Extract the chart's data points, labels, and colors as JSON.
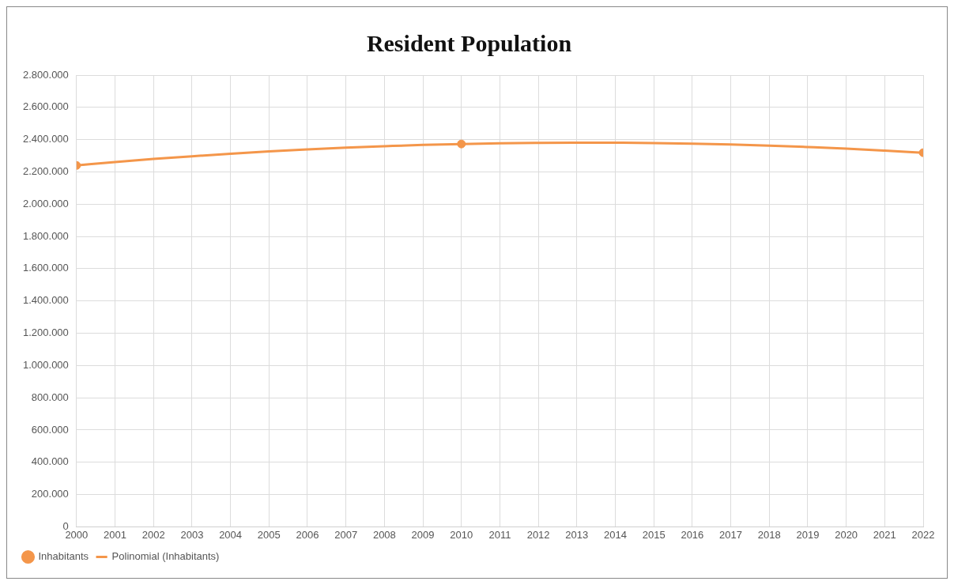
{
  "chart_data": {
    "type": "scatter",
    "title": "Resident Population",
    "xlim": [
      2000,
      2022
    ],
    "xticks": [
      2000,
      2001,
      2002,
      2003,
      2004,
      2005,
      2006,
      2007,
      2008,
      2009,
      2010,
      2011,
      2012,
      2013,
      2014,
      2015,
      2016,
      2017,
      2018,
      2019,
      2020,
      2021,
      2022
    ],
    "ylim": [
      0,
      2800000
    ],
    "yticks": [
      {
        "value": 0,
        "label": "0"
      },
      {
        "value": 200000,
        "label": "200.000"
      },
      {
        "value": 400000,
        "label": "400.000"
      },
      {
        "value": 600000,
        "label": "600.000"
      },
      {
        "value": 800000,
        "label": "800.000"
      },
      {
        "value": 1000000,
        "label": "1.000.000"
      },
      {
        "value": 1200000,
        "label": "1.200.000"
      },
      {
        "value": 1400000,
        "label": "1.400.000"
      },
      {
        "value": 1600000,
        "label": "1.600.000"
      },
      {
        "value": 1800000,
        "label": "1.800.000"
      },
      {
        "value": 2000000,
        "label": "2.000.000"
      },
      {
        "value": 2200000,
        "label": "2.200.000"
      },
      {
        "value": 2400000,
        "label": "2.400.000"
      },
      {
        "value": 2600000,
        "label": "2.600.000"
      },
      {
        "value": 2800000,
        "label": "2.800.000"
      }
    ],
    "grid": true,
    "legend": "bottom left",
    "marker": "circle",
    "series": [
      {
        "name": "Inhabitants",
        "color": "#f4964a",
        "x": [
          2000,
          2010,
          2022
        ],
        "values": [
          2240000,
          2373000,
          2319000
        ]
      },
      {
        "name": "Polinomial (Inhabitants)",
        "type": "line",
        "color": "#f4964a",
        "marker": "none",
        "line_style": "solid",
        "x": [
          2000,
          2001,
          2002,
          2003,
          2004,
          2005,
          2006,
          2007,
          2008,
          2009,
          2010,
          2011,
          2012,
          2013,
          2014,
          2015,
          2016,
          2017,
          2018,
          2019,
          2020,
          2021,
          2022
        ],
        "values": [
          2240000,
          2261000,
          2280000,
          2297000,
          2313000,
          2327000,
          2339000,
          2350000,
          2359000,
          2367000,
          2373000,
          2377000,
          2380000,
          2381000,
          2381000,
          2379000,
          2375000,
          2370000,
          2363000,
          2354000,
          2344000,
          2332000,
          2319000
        ]
      }
    ]
  }
}
